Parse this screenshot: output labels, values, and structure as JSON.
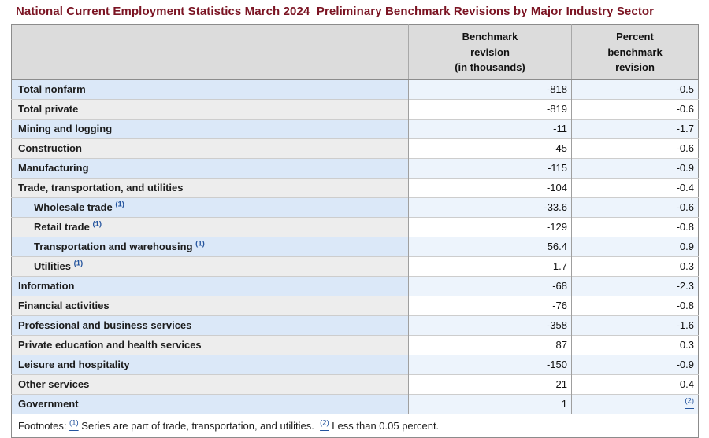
{
  "page": {
    "title": "National Current Employment Statistics March 2024  Preliminary Benchmark Revisions by Major Industry Sector"
  },
  "colors": {
    "title_maroon": "#7b1423",
    "header_bg": "#dcdcdc",
    "row_odd_label_bg": "#dbe8f8",
    "row_odd_value_bg": "#edf4fc",
    "row_even_label_bg": "#ededed",
    "row_even_value_bg": "#ffffff",
    "footnote_link_blue": "#24549e",
    "outer_border": "#8c8c8c"
  },
  "table": {
    "column_headers": {
      "industry": "",
      "benchmark_revision": "Benchmark\nrevision\n(in thousands)",
      "percent_benchmark_revision": "Percent\nbenchmark\nrevision"
    },
    "rows": [
      {
        "label": "Total nonfarm",
        "revision": "-818",
        "percent": "-0.5",
        "indent": false
      },
      {
        "label": "Total private",
        "revision": "-819",
        "percent": "-0.6",
        "indent": false
      },
      {
        "label": "Mining and logging",
        "revision": "-11",
        "percent": "-1.7",
        "indent": false
      },
      {
        "label": "Construction",
        "revision": "-45",
        "percent": "-0.6",
        "indent": false
      },
      {
        "label": "Manufacturing",
        "revision": "-115",
        "percent": "-0.9",
        "indent": false
      },
      {
        "label": "Trade, transportation, and utilities",
        "revision": "-104",
        "percent": "-0.4",
        "indent": false
      },
      {
        "label": "Wholesale trade",
        "footnote_marker": "(1)",
        "revision": "-33.6",
        "percent": "-0.6",
        "indent": true
      },
      {
        "label": "Retail trade",
        "footnote_marker": "(1)",
        "revision": "-129",
        "percent": "-0.8",
        "indent": true
      },
      {
        "label": "Transportation and warehousing",
        "footnote_marker": "(1)",
        "revision": "56.4",
        "percent": "0.9",
        "indent": true
      },
      {
        "label": "Utilities",
        "footnote_marker": "(1)",
        "revision": "1.7",
        "percent": "0.3",
        "indent": true
      },
      {
        "label": "Information",
        "revision": "-68",
        "percent": "-2.3",
        "indent": false
      },
      {
        "label": "Financial activities",
        "revision": "-76",
        "percent": "-0.8",
        "indent": false
      },
      {
        "label": "Professional and business services",
        "revision": "-358",
        "percent": "-1.6",
        "indent": false
      },
      {
        "label": "Private education and health services",
        "revision": "87",
        "percent": "0.3",
        "indent": false
      },
      {
        "label": "Leisure and hospitality",
        "revision": "-150",
        "percent": "-0.9",
        "indent": false
      },
      {
        "label": "Other services",
        "revision": "21",
        "percent": "0.4",
        "indent": false
      },
      {
        "label": "Government",
        "revision": "1",
        "percent": "",
        "percent_link": "(2)",
        "indent": false
      }
    ],
    "footnotes": {
      "label": "Footnotes:",
      "items": [
        {
          "marker": "(1)",
          "text": "Series are part of trade, transportation, and utilities."
        },
        {
          "marker": "(2)",
          "text": "Less than 0.05 percent."
        }
      ]
    }
  }
}
